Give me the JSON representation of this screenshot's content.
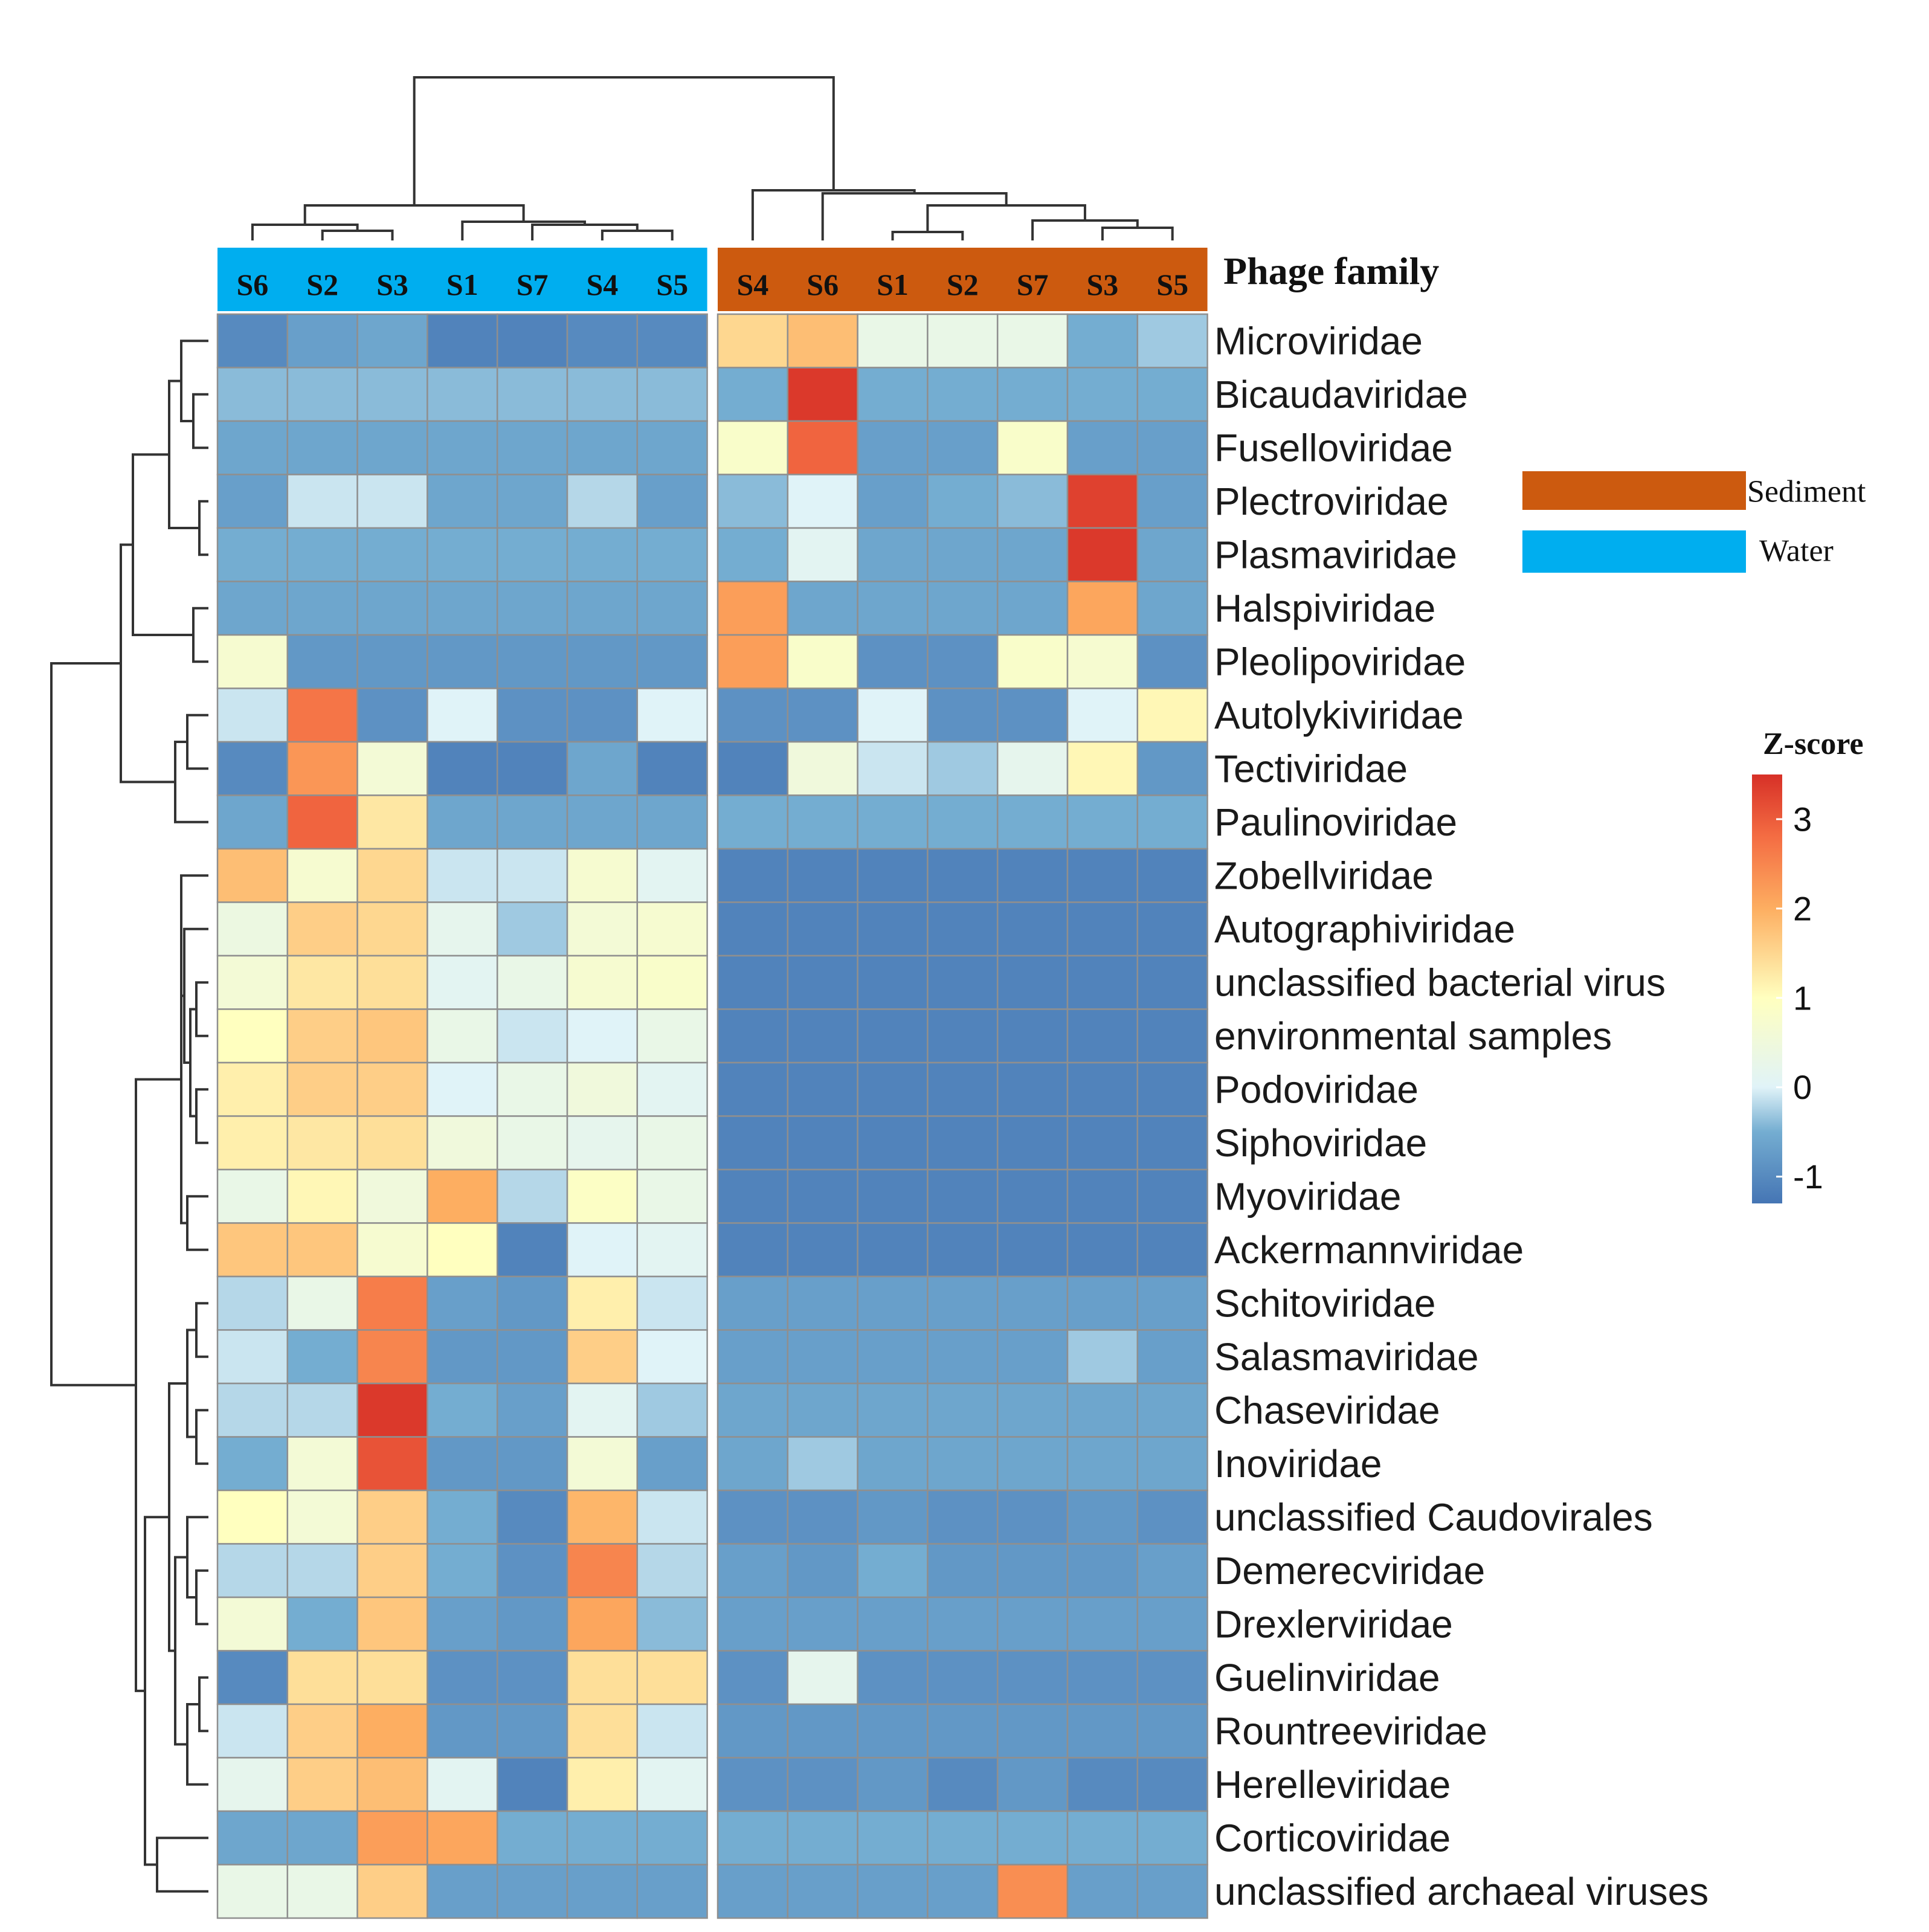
{
  "chart_data": {
    "type": "heatmap",
    "annotation_title": "Phage family",
    "colorbar_title": "Z-score",
    "colorbar_ticks": [
      "3",
      "2",
      "1",
      "0",
      "-1"
    ],
    "colorbar_tick_values": [
      3,
      2,
      1,
      0,
      -1
    ],
    "value_range": [
      -1.3,
      3.5
    ],
    "groups": [
      {
        "name": "Water",
        "color": "#00aeef",
        "columns": [
          "S6",
          "S2",
          "S3",
          "S1",
          "S7",
          "S4",
          "S5"
        ]
      },
      {
        "name": "Sediment",
        "color": "#cc5a0f",
        "columns": [
          "S4",
          "S6",
          "S1",
          "S2",
          "S7",
          "S3",
          "S5"
        ]
      }
    ],
    "legend": [
      {
        "label": "Sediment",
        "color": "#cc5a0f"
      },
      {
        "label": "Water",
        "color": "#00aeef"
      }
    ],
    "rows": [
      "Microviridae",
      "Bicaudaviridae",
      "Fuselloviridae",
      "Plectroviridae",
      "Plasmaviridae",
      "Halspiviridae",
      "Pleolipoviridae",
      "Autolykiviridae",
      "Tectiviridae",
      "Paulinoviridae",
      "Zobellviridae",
      "Autographiviridae",
      "unclassified bacterial virus",
      "environmental samples",
      "Podoviridae",
      "Siphoviridae",
      "Myoviridae",
      "Ackermannviridae",
      "Schitoviridae",
      "Salasmaviridae",
      "Chaseviridae",
      "Inoviridae",
      "unclassified Caudovirales",
      "Demerecviridae",
      "Drexlerviridae",
      "Guelinviridae",
      "Rountreeviridae",
      "Herelleviridae",
      "Corticoviridae",
      "unclassified archaeal viruses"
    ],
    "values": [
      [
        -1.0,
        -0.7,
        -0.6,
        -1.1,
        -1.1,
        -1.0,
        -1.0,
        1.5,
        1.8,
        0.3,
        0.3,
        0.3,
        -0.5,
        -0.3
      ],
      [
        -0.4,
        -0.4,
        -0.4,
        -0.4,
        -0.4,
        -0.4,
        -0.4,
        -0.5,
        3.4,
        -0.5,
        -0.5,
        -0.5,
        -0.5,
        -0.5
      ],
      [
        -0.6,
        -0.6,
        -0.6,
        -0.6,
        -0.6,
        -0.6,
        -0.6,
        0.8,
        2.9,
        -0.7,
        -0.7,
        0.8,
        -0.7,
        -0.7
      ],
      [
        -0.7,
        -0.1,
        -0.1,
        -0.6,
        -0.6,
        -0.2,
        -0.7,
        -0.4,
        0.0,
        -0.7,
        -0.5,
        -0.4,
        3.3,
        -0.7
      ],
      [
        -0.5,
        -0.5,
        -0.5,
        -0.5,
        -0.5,
        -0.5,
        -0.5,
        -0.5,
        0.1,
        -0.6,
        -0.6,
        -0.6,
        3.4,
        -0.6
      ],
      [
        -0.6,
        -0.6,
        -0.6,
        -0.6,
        -0.6,
        -0.6,
        -0.6,
        2.2,
        -0.6,
        -0.6,
        -0.6,
        -0.6,
        2.1,
        -0.6
      ],
      [
        0.7,
        -0.8,
        -0.8,
        -0.8,
        -0.8,
        -0.8,
        -0.8,
        2.2,
        0.8,
        -0.9,
        -0.9,
        0.8,
        0.7,
        -0.9
      ],
      [
        -0.1,
        2.7,
        -0.9,
        0.0,
        -0.9,
        -0.9,
        0.0,
        -0.9,
        -0.9,
        0.0,
        -0.9,
        -0.9,
        0.0,
        1.1
      ],
      [
        -1.0,
        2.3,
        0.6,
        -1.1,
        -1.1,
        -0.6,
        -1.1,
        -1.1,
        0.5,
        -0.1,
        -0.3,
        0.2,
        1.1,
        -0.8
      ],
      [
        -0.6,
        2.9,
        1.3,
        -0.6,
        -0.6,
        -0.6,
        -0.6,
        -0.5,
        -0.5,
        -0.5,
        -0.5,
        -0.5,
        -0.5,
        -0.5
      ],
      [
        1.8,
        0.7,
        1.5,
        -0.1,
        -0.1,
        0.7,
        0.1,
        -1.1,
        -1.1,
        -1.1,
        -1.1,
        -1.1,
        -1.1,
        -1.1
      ],
      [
        0.4,
        1.6,
        1.5,
        0.2,
        -0.3,
        0.6,
        0.7,
        -1.1,
        -1.1,
        -1.1,
        -1.1,
        -1.1,
        -1.1,
        -1.1
      ],
      [
        0.6,
        1.3,
        1.4,
        0.1,
        0.3,
        0.7,
        0.8,
        -1.1,
        -1.1,
        -1.1,
        -1.1,
        -1.1,
        -1.1,
        -1.1
      ],
      [
        1.0,
        1.6,
        1.7,
        0.3,
        -0.1,
        0.0,
        0.3,
        -1.1,
        -1.1,
        -1.1,
        -1.1,
        -1.1,
        -1.1,
        -1.1
      ],
      [
        1.2,
        1.6,
        1.6,
        0.0,
        0.3,
        0.5,
        0.1,
        -1.1,
        -1.1,
        -1.1,
        -1.1,
        -1.1,
        -1.1,
        -1.1
      ],
      [
        1.2,
        1.3,
        1.4,
        0.5,
        0.3,
        0.2,
        0.3,
        -1.1,
        -1.1,
        -1.1,
        -1.1,
        -1.1,
        -1.1,
        -1.1
      ],
      [
        0.3,
        1.1,
        0.5,
        2.0,
        -0.2,
        0.9,
        0.3,
        -1.1,
        -1.1,
        -1.1,
        -1.1,
        -1.1,
        -1.1,
        -1.1
      ],
      [
        1.7,
        1.7,
        0.7,
        1.0,
        -1.1,
        0.0,
        0.1,
        -1.1,
        -1.1,
        -1.1,
        -1.1,
        -1.1,
        -1.1,
        -1.1
      ],
      [
        -0.2,
        0.3,
        2.6,
        -0.7,
        -0.8,
        1.2,
        -0.1,
        -0.7,
        -0.7,
        -0.7,
        -0.7,
        -0.7,
        -0.7,
        -0.7
      ],
      [
        -0.1,
        -0.5,
        2.5,
        -0.8,
        -0.8,
        1.6,
        0.0,
        -0.7,
        -0.7,
        -0.7,
        -0.7,
        -0.7,
        -0.3,
        -0.7
      ],
      [
        -0.2,
        -0.2,
        3.4,
        -0.5,
        -0.7,
        0.1,
        -0.3,
        -0.6,
        -0.6,
        -0.6,
        -0.6,
        -0.6,
        -0.6,
        -0.6
      ],
      [
        -0.5,
        0.6,
        3.1,
        -0.8,
        -0.8,
        0.6,
        -0.7,
        -0.6,
        -0.3,
        -0.6,
        -0.6,
        -0.6,
        -0.6,
        -0.6
      ],
      [
        1.0,
        0.6,
        1.6,
        -0.5,
        -1.0,
        1.9,
        -0.1,
        -0.9,
        -0.9,
        -0.8,
        -0.9,
        -0.9,
        -0.8,
        -0.9
      ],
      [
        -0.2,
        -0.2,
        1.6,
        -0.5,
        -0.9,
        2.5,
        -0.2,
        -0.7,
        -0.8,
        -0.5,
        -0.8,
        -0.8,
        -0.8,
        -0.7
      ],
      [
        0.6,
        -0.5,
        1.7,
        -0.7,
        -0.8,
        2.1,
        -0.4,
        -0.7,
        -0.7,
        -0.7,
        -0.7,
        -0.7,
        -0.7,
        -0.7
      ],
      [
        -1.0,
        1.4,
        1.4,
        -0.9,
        -0.9,
        1.4,
        1.4,
        -0.9,
        0.2,
        -0.9,
        -0.9,
        -0.9,
        -0.9,
        -0.9
      ],
      [
        -0.1,
        1.6,
        2.0,
        -0.8,
        -0.8,
        1.4,
        -0.1,
        -0.8,
        -0.8,
        -0.8,
        -0.8,
        -0.8,
        -0.8,
        -0.8
      ],
      [
        0.2,
        1.6,
        1.8,
        0.1,
        -1.1,
        1.2,
        0.1,
        -0.9,
        -0.9,
        -0.8,
        -1.0,
        -0.8,
        -1.0,
        -1.0
      ],
      [
        -0.6,
        -0.6,
        2.2,
        2.1,
        -0.5,
        -0.5,
        -0.5,
        -0.5,
        -0.5,
        -0.5,
        -0.5,
        -0.5,
        -0.5,
        -0.5
      ],
      [
        0.3,
        0.3,
        1.6,
        -0.7,
        -0.7,
        -0.7,
        -0.7,
        -0.7,
        -0.7,
        -0.7,
        -0.7,
        2.4,
        -0.7,
        -0.7
      ]
    ]
  }
}
